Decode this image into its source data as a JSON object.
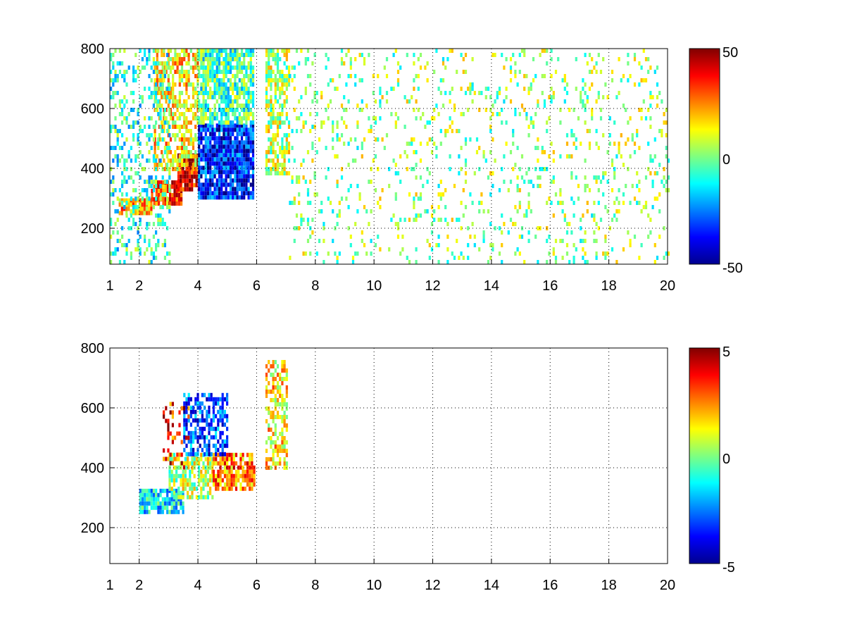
{
  "chart_data": [
    {
      "type": "heatmap",
      "title": "",
      "xlabel": "",
      "ylabel": "",
      "xlim": [
        1,
        20
      ],
      "ylim": [
        80,
        800
      ],
      "x_ticks": [
        "1",
        "2",
        "4",
        "6",
        "8",
        "10",
        "12",
        "14",
        "16",
        "18",
        "20"
      ],
      "y_ticks": [
        "200",
        "400",
        "600",
        "800"
      ],
      "grid": true,
      "grid_style": "dotted",
      "colormap": "jet",
      "clim": [
        -50,
        50
      ],
      "colorbar_ticks": [
        "50",
        "0",
        "-50"
      ],
      "regions": [
        {
          "x": [
            1.3,
            2.4
          ],
          "y": [
            250,
            300
          ],
          "value": 20,
          "density": 0.9
        },
        {
          "x": [
            2.4,
            3.4
          ],
          "y": [
            280,
            360
          ],
          "value": 32,
          "density": 0.9
        },
        {
          "x": [
            3.3,
            4.0
          ],
          "y": [
            330,
            450
          ],
          "value": 40,
          "density": 0.9
        },
        {
          "x": [
            2.5,
            4.0
          ],
          "y": [
            400,
            800
          ],
          "value": 15,
          "density": 0.6
        },
        {
          "x": [
            4.0,
            5.9
          ],
          "y": [
            300,
            550
          ],
          "value": -35,
          "density": 0.9
        },
        {
          "x": [
            4.0,
            5.9
          ],
          "y": [
            550,
            800
          ],
          "value": -5,
          "density": 0.8
        },
        {
          "x": [
            1.0,
            3.0
          ],
          "y": [
            80,
            800
          ],
          "value": -8,
          "density": 0.3
        },
        {
          "x": [
            6.3,
            7.1
          ],
          "y": [
            380,
            800
          ],
          "value": 5,
          "density": 0.6
        },
        {
          "x": [
            7.1,
            20.0
          ],
          "y": [
            80,
            800
          ],
          "value": 2,
          "density": 0.12
        }
      ]
    },
    {
      "type": "heatmap",
      "title": "",
      "xlabel": "",
      "ylabel": "",
      "xlim": [
        1,
        20
      ],
      "ylim": [
        80,
        800
      ],
      "x_ticks": [
        "1",
        "2",
        "4",
        "6",
        "8",
        "10",
        "12",
        "14",
        "16",
        "18",
        "20"
      ],
      "y_ticks": [
        "200",
        "400",
        "600",
        "800"
      ],
      "grid": true,
      "grid_style": "dotted",
      "colormap": "jet",
      "clim": [
        -5,
        5
      ],
      "colorbar_ticks": [
        "5",
        "0",
        "-5"
      ],
      "regions": [
        {
          "x": [
            2.0,
            3.5
          ],
          "y": [
            250,
            330
          ],
          "value": -1.5,
          "density": 0.8
        },
        {
          "x": [
            3.0,
            4.5
          ],
          "y": [
            300,
            450
          ],
          "value": 0.5,
          "density": 0.7
        },
        {
          "x": [
            4.5,
            5.9
          ],
          "y": [
            330,
            450
          ],
          "value": 2.5,
          "density": 0.8
        },
        {
          "x": [
            3.5,
            5.0
          ],
          "y": [
            450,
            650
          ],
          "value": -3,
          "density": 0.6
        },
        {
          "x": [
            2.8,
            3.7
          ],
          "y": [
            400,
            620
          ],
          "value": 3.5,
          "density": 0.25
        },
        {
          "x": [
            6.3,
            7.0
          ],
          "y": [
            400,
            760
          ],
          "value": 1.5,
          "density": 0.6
        }
      ]
    }
  ]
}
